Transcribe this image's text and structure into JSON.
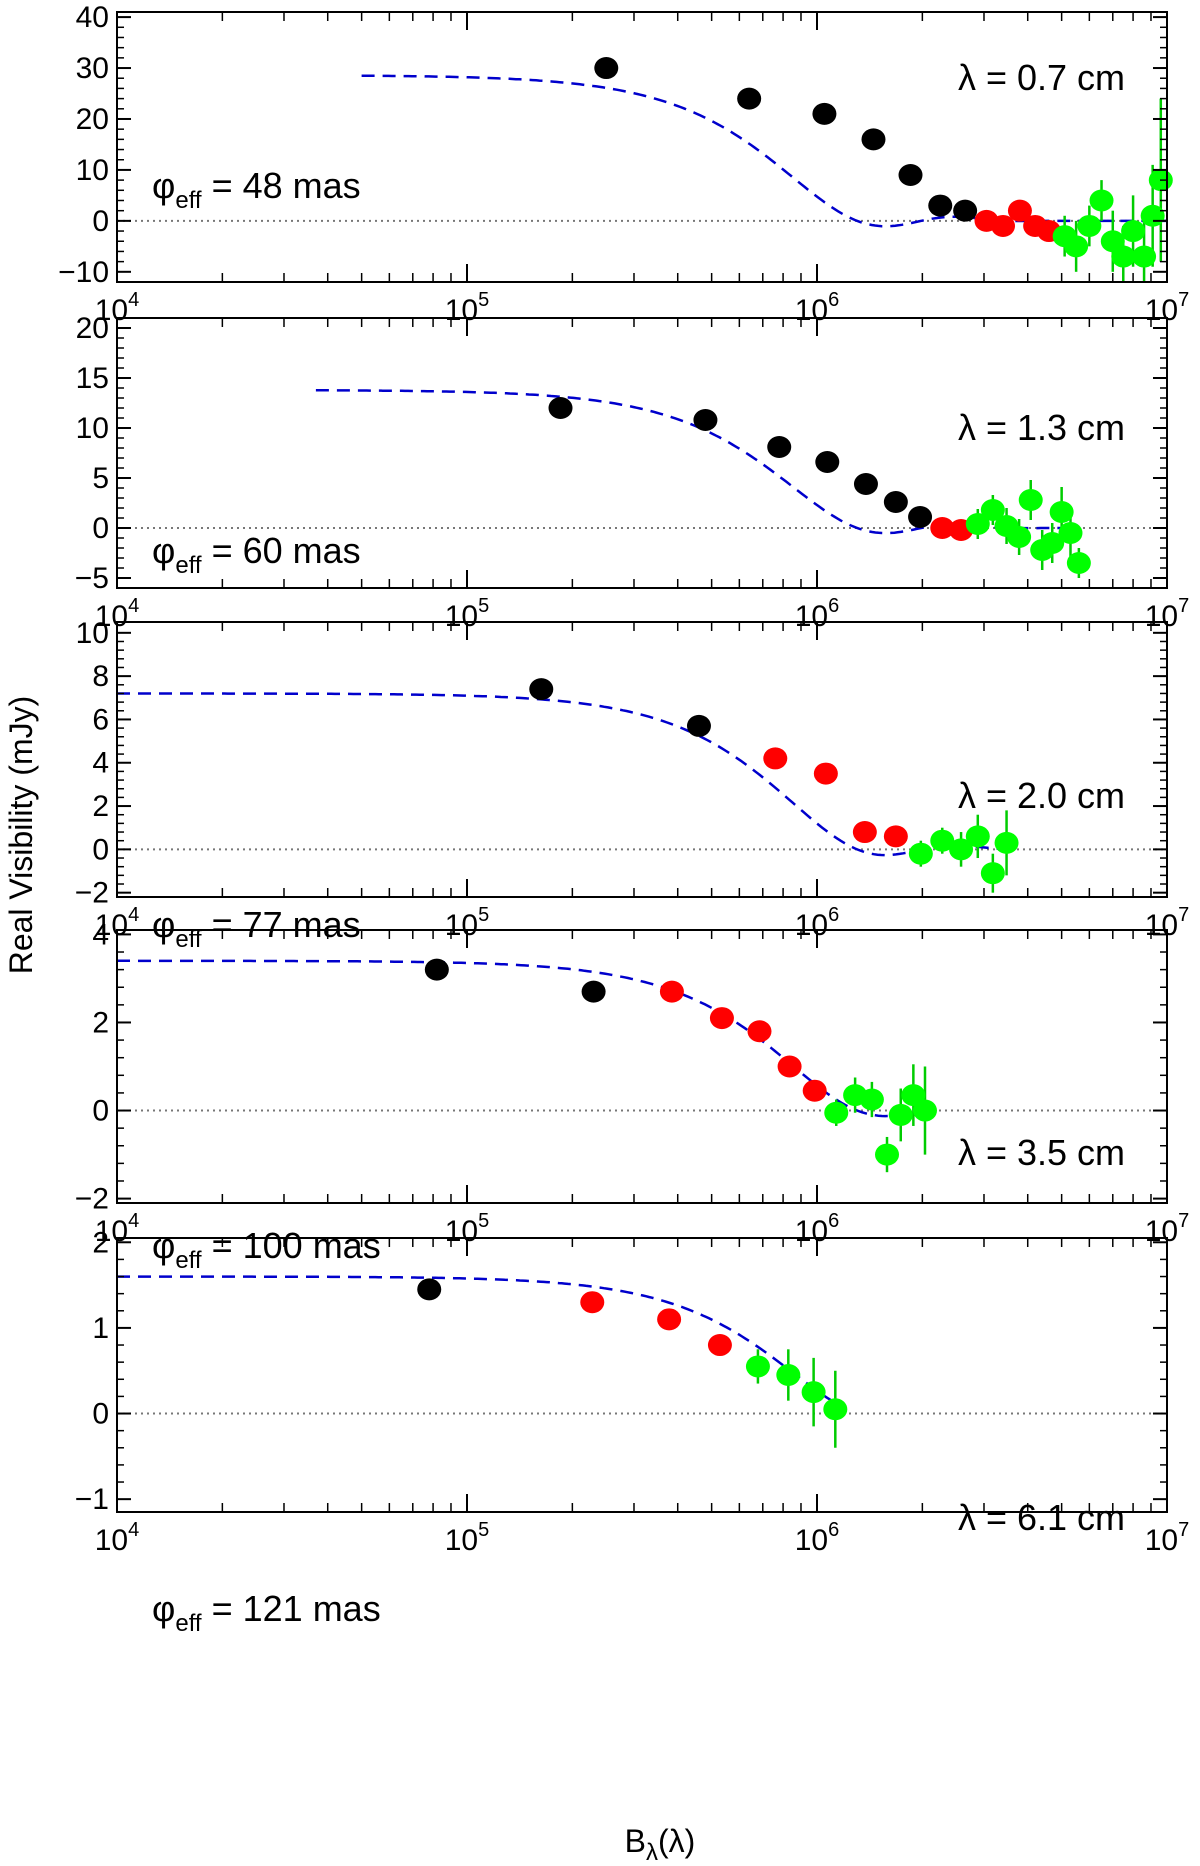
{
  "figure": {
    "xlabel_main": "B",
    "xlabel_sub": "λ",
    "xlabel_tail": "(λ)",
    "ylabel": "Real Visibility (mJy)",
    "x_tick_base": "10",
    "x_tick_exponents": [
      "4",
      "5",
      "6",
      "7"
    ]
  },
  "colors": {
    "early": "#000000",
    "mid": "#ff0000",
    "late": "#00ff00",
    "model": "#0000cc",
    "errorbar": "#00cc00",
    "zero_line": "#777777"
  },
  "chart_data": [
    {
      "type": "scatter",
      "lambda_label": "λ = 0.7 cm",
      "phi_symbol": "φ",
      "phi_sub": "eff",
      "phi_value": " = 48 mas",
      "xscale": "log",
      "xlim": [
        10000,
        10000000
      ],
      "ylim": [
        -12,
        41
      ],
      "yticks": [
        -10,
        0,
        10,
        20,
        30,
        40
      ],
      "ytick_labels": [
        "−10",
        "0",
        "10",
        "20",
        "30",
        "40"
      ],
      "model": {
        "amp": 28.6,
        "x_start": 50000,
        "x_end": 10000000
      },
      "points": [
        {
          "x": 250000,
          "y": 30,
          "c": "black"
        },
        {
          "x": 640000,
          "y": 24,
          "c": "black"
        },
        {
          "x": 1050000,
          "y": 21,
          "c": "black"
        },
        {
          "x": 1450000,
          "y": 16,
          "c": "black"
        },
        {
          "x": 1850000,
          "y": 9,
          "c": "black"
        },
        {
          "x": 2250000,
          "y": 3,
          "c": "black"
        },
        {
          "x": 2650000,
          "y": 2,
          "c": "black"
        },
        {
          "x": 3050000,
          "y": 0,
          "c": "red"
        },
        {
          "x": 3400000,
          "y": -1,
          "c": "red"
        },
        {
          "x": 3800000,
          "y": 2,
          "c": "red"
        },
        {
          "x": 4200000,
          "y": -1,
          "c": "red"
        },
        {
          "x": 4600000,
          "y": -2,
          "c": "red"
        },
        {
          "x": 5100000,
          "y": -3,
          "c": "green",
          "err": 4
        },
        {
          "x": 5500000,
          "y": -5,
          "c": "green",
          "err": 5
        },
        {
          "x": 6000000,
          "y": -1,
          "c": "green",
          "err": 4
        },
        {
          "x": 6500000,
          "y": 4,
          "c": "green",
          "err": 4
        },
        {
          "x": 7000000,
          "y": -4,
          "c": "green",
          "err": 6
        },
        {
          "x": 7500000,
          "y": -7,
          "c": "green",
          "err": 6
        },
        {
          "x": 8000000,
          "y": -2,
          "c": "green",
          "err": 7
        },
        {
          "x": 8600000,
          "y": -7,
          "c": "green",
          "err": 8
        },
        {
          "x": 9100000,
          "y": 1,
          "c": "green",
          "err": 10
        },
        {
          "x": 9600000,
          "y": 8,
          "c": "green",
          "err": 16
        }
      ]
    },
    {
      "type": "scatter",
      "lambda_label": "λ = 1.3 cm",
      "phi_symbol": "φ",
      "phi_sub": "eff",
      "phi_value": " = 60 mas",
      "xscale": "log",
      "xlim": [
        10000,
        10000000
      ],
      "ylim": [
        -6,
        21
      ],
      "yticks": [
        -5,
        0,
        5,
        10,
        15,
        20
      ],
      "ytick_labels": [
        "−5",
        "0",
        "5",
        "10",
        "15",
        "20"
      ],
      "model": {
        "amp": 13.8,
        "x_start": 37000,
        "x_end": 5600000
      },
      "points": [
        {
          "x": 185000,
          "y": 12,
          "c": "black"
        },
        {
          "x": 480000,
          "y": 10.8,
          "c": "black"
        },
        {
          "x": 780000,
          "y": 8.1,
          "c": "black"
        },
        {
          "x": 1070000,
          "y": 6.6,
          "c": "black"
        },
        {
          "x": 1380000,
          "y": 4.4,
          "c": "black"
        },
        {
          "x": 1680000,
          "y": 2.6,
          "c": "black"
        },
        {
          "x": 1970000,
          "y": 1.1,
          "c": "black"
        },
        {
          "x": 2280000,
          "y": 0,
          "c": "red"
        },
        {
          "x": 2580000,
          "y": -0.2,
          "c": "red"
        },
        {
          "x": 2880000,
          "y": 0.4,
          "c": "green",
          "err": 1.5
        },
        {
          "x": 3180000,
          "y": 1.8,
          "c": "green",
          "err": 1.5
        },
        {
          "x": 3480000,
          "y": 0.2,
          "c": "green",
          "err": 1.8
        },
        {
          "x": 3780000,
          "y": -0.9,
          "c": "green",
          "err": 1.8
        },
        {
          "x": 4080000,
          "y": 2.8,
          "c": "green",
          "err": 2
        },
        {
          "x": 4400000,
          "y": -2.2,
          "c": "green",
          "err": 2
        },
        {
          "x": 4700000,
          "y": -1.5,
          "c": "green",
          "err": 2
        },
        {
          "x": 5000000,
          "y": 1.6,
          "c": "green",
          "err": 2.5
        },
        {
          "x": 5300000,
          "y": -0.5,
          "c": "green",
          "err": 2.5
        },
        {
          "x": 5600000,
          "y": -3.5,
          "c": "green",
          "err": 1.5
        }
      ]
    },
    {
      "type": "scatter",
      "lambda_label": "λ = 2.0 cm",
      "phi_symbol": "φ",
      "phi_sub": "eff",
      "phi_value": " = 77 mas",
      "xscale": "log",
      "xlim": [
        10000,
        10000000
      ],
      "ylim": [
        -2.2,
        10.5
      ],
      "yticks": [
        -2,
        0,
        2,
        4,
        6,
        8,
        10
      ],
      "ytick_labels": [
        "−2",
        "0",
        "2",
        "4",
        "6",
        "8",
        "10"
      ],
      "model": {
        "amp": 7.2,
        "x_start": 10000,
        "x_end": 3400000
      },
      "points": [
        {
          "x": 163000,
          "y": 7.4,
          "c": "black"
        },
        {
          "x": 460000,
          "y": 5.7,
          "c": "black"
        },
        {
          "x": 760000,
          "y": 4.2,
          "c": "red"
        },
        {
          "x": 1060000,
          "y": 3.5,
          "c": "red"
        },
        {
          "x": 1370000,
          "y": 0.8,
          "c": "red"
        },
        {
          "x": 1680000,
          "y": 0.6,
          "c": "red"
        },
        {
          "x": 1980000,
          "y": -0.2,
          "c": "green",
          "err": 0.6
        },
        {
          "x": 2280000,
          "y": 0.4,
          "c": "green",
          "err": 0.6
        },
        {
          "x": 2580000,
          "y": 0,
          "c": "green",
          "err": 0.8
        },
        {
          "x": 2880000,
          "y": 0.6,
          "c": "green",
          "err": 1
        },
        {
          "x": 3180000,
          "y": -1.1,
          "c": "green",
          "err": 0.9
        },
        {
          "x": 3480000,
          "y": 0.3,
          "c": "green",
          "err": 1.5
        }
      ]
    },
    {
      "type": "scatter",
      "lambda_label": "λ = 3.5 cm",
      "phi_symbol": "φ",
      "phi_sub": "eff",
      "phi_value": " = 100 mas",
      "xscale": "log",
      "xlim": [
        10000,
        10000000
      ],
      "ylim": [
        -2.1,
        4.1
      ],
      "yticks": [
        -2,
        0,
        2,
        4
      ],
      "ytick_labels": [
        "−2",
        "0",
        "2",
        "4"
      ],
      "model": {
        "amp": 3.4,
        "x_start": 10000,
        "x_end": 1950000
      },
      "points": [
        {
          "x": 82000,
          "y": 3.2,
          "c": "black"
        },
        {
          "x": 230000,
          "y": 2.7,
          "c": "black"
        },
        {
          "x": 385000,
          "y": 2.7,
          "c": "red"
        },
        {
          "x": 535000,
          "y": 2.1,
          "c": "red"
        },
        {
          "x": 685000,
          "y": 1.8,
          "c": "red"
        },
        {
          "x": 835000,
          "y": 1.0,
          "c": "red"
        },
        {
          "x": 985000,
          "y": 0.45,
          "c": "red"
        },
        {
          "x": 1135000,
          "y": -0.05,
          "c": "green",
          "err": 0.3
        },
        {
          "x": 1285000,
          "y": 0.35,
          "c": "green",
          "err": 0.4
        },
        {
          "x": 1435000,
          "y": 0.25,
          "c": "green",
          "err": 0.4
        },
        {
          "x": 1585000,
          "y": -1.0,
          "c": "green",
          "err": 0.4
        },
        {
          "x": 1735000,
          "y": -0.1,
          "c": "green",
          "err": 0.6
        },
        {
          "x": 1885000,
          "y": 0.35,
          "c": "green",
          "err": 0.7
        },
        {
          "x": 2035000,
          "y": 0.0,
          "c": "green",
          "err": 1.0
        }
      ]
    },
    {
      "type": "scatter",
      "lambda_label": "λ = 6.1 cm",
      "phi_symbol": "φ",
      "phi_sub": "eff",
      "phi_value": " = 121 mas",
      "xscale": "log",
      "xlim": [
        10000,
        10000000
      ],
      "ylim": [
        -1.15,
        2.05
      ],
      "yticks": [
        -1,
        0,
        1,
        2
      ],
      "ytick_labels": [
        "−1",
        "0",
        "1",
        "2"
      ],
      "model": {
        "amp": 1.6,
        "x_start": 10000,
        "x_end": 1150000
      },
      "points": [
        {
          "x": 78000,
          "y": 1.45,
          "c": "black"
        },
        {
          "x": 228000,
          "y": 1.3,
          "c": "red"
        },
        {
          "x": 378000,
          "y": 1.1,
          "c": "red"
        },
        {
          "x": 528000,
          "y": 0.8,
          "c": "red"
        },
        {
          "x": 678000,
          "y": 0.55,
          "c": "green",
          "err": 0.2
        },
        {
          "x": 828000,
          "y": 0.45,
          "c": "green",
          "err": 0.3
        },
        {
          "x": 978000,
          "y": 0.25,
          "c": "green",
          "err": 0.4
        },
        {
          "x": 1128000,
          "y": 0.05,
          "c": "green",
          "err": 0.45
        }
      ]
    }
  ]
}
